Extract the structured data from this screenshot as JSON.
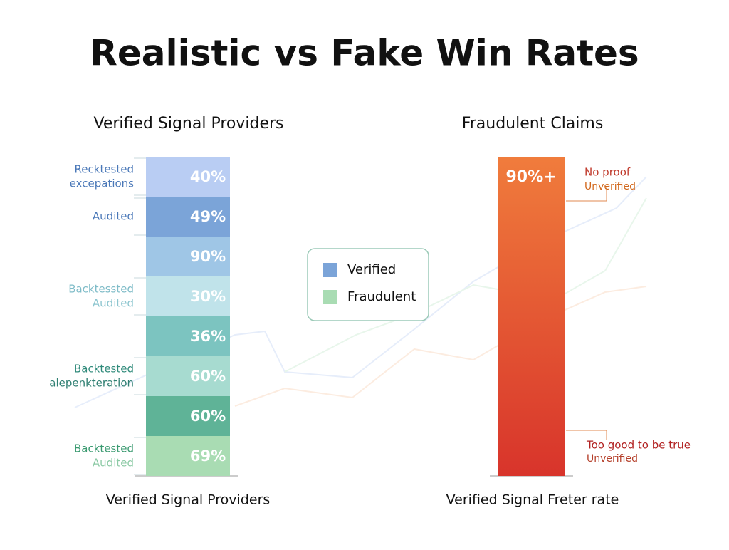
{
  "title": "Realistic vs Fake Win Rates",
  "left": {
    "heading": "Verified Signal Providers",
    "caption": "Verified Signal Providers",
    "segments": [
      {
        "value": "40%",
        "color": "#b9cdf3"
      },
      {
        "value": "49%",
        "color": "#7ba4d8"
      },
      {
        "value": "90%",
        "color": "#9fc6e6"
      },
      {
        "value": "30%",
        "color": "#c0e3ea"
      },
      {
        "value": "36%",
        "color": "#7cc4c0"
      },
      {
        "value": "60%",
        "color": "#a7dbd0"
      },
      {
        "value": "60%",
        "color": "#5fb397"
      },
      {
        "value": "69%",
        "color": "#a9dcb3"
      }
    ],
    "labels": [
      {
        "lines": [
          "Recktested",
          "excepations"
        ],
        "y": 0,
        "colors": [
          "#4a78b8",
          "#4a78b8"
        ]
      },
      {
        "lines": [
          "Audited"
        ],
        "y": 1,
        "colors": [
          "#4a78b8"
        ]
      },
      {
        "lines": [
          "Backtessted",
          "Audited"
        ],
        "y": 3,
        "colors": [
          "#7fbcc8",
          "#8cc5cf"
        ]
      },
      {
        "lines": [
          "Backtested",
          "alepenkteration"
        ],
        "y": 5,
        "colors": [
          "#2f8a7a",
          "#2f7f72"
        ]
      },
      {
        "lines": [
          "Backtested",
          "Audited"
        ],
        "y": 7,
        "colors": [
          "#3a9a70",
          "#8ccaa5"
        ]
      }
    ]
  },
  "legend": [
    {
      "name": "Verified",
      "color": "#7ba4d8"
    },
    {
      "name": "Fraudulent",
      "color": "#a9dcb3"
    }
  ],
  "right": {
    "heading": "Fraudulent Claims",
    "caption": "Verified Signal Freter rate",
    "value": "90%+",
    "notes": [
      {
        "lines": [
          "No proof",
          "Unverified"
        ]
      },
      {
        "lines": [
          "Too good to be true",
          "Unverified"
        ]
      }
    ]
  }
}
